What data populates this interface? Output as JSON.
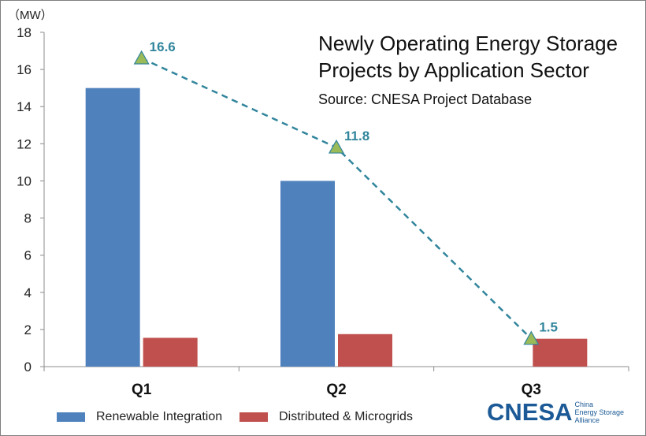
{
  "chart_data": {
    "type": "bar",
    "title_line1": "Newly Operating Energy Storage",
    "title_line2": "Projects by Application Sector",
    "subtitle": "Source: CNESA Project Database",
    "unit_label": "（MW）",
    "categories": [
      "Q1",
      "Q2",
      "Q3"
    ],
    "ylim": [
      0,
      18
    ],
    "yticks": [
      0,
      2,
      4,
      6,
      8,
      10,
      12,
      14,
      16,
      18
    ],
    "series": [
      {
        "name": "Renewable Integration",
        "values": [
          15,
          10,
          0
        ],
        "color": "#4f81bd"
      },
      {
        "name": "Distributed & Microgrids",
        "values": [
          1.55,
          1.75,
          1.5
        ],
        "color": "#c0504d"
      }
    ],
    "total_line": {
      "values": [
        16.6,
        11.8,
        1.5
      ],
      "labels": [
        "16.6",
        "11.8",
        "1.5"
      ],
      "color": "#31859c",
      "marker_fill": "#9bbb59"
    },
    "grid": false,
    "legend_position": "bottom"
  },
  "logo": {
    "text": "CNESA",
    "tagline": [
      "China",
      "Energy Storage",
      "Alliance"
    ]
  }
}
